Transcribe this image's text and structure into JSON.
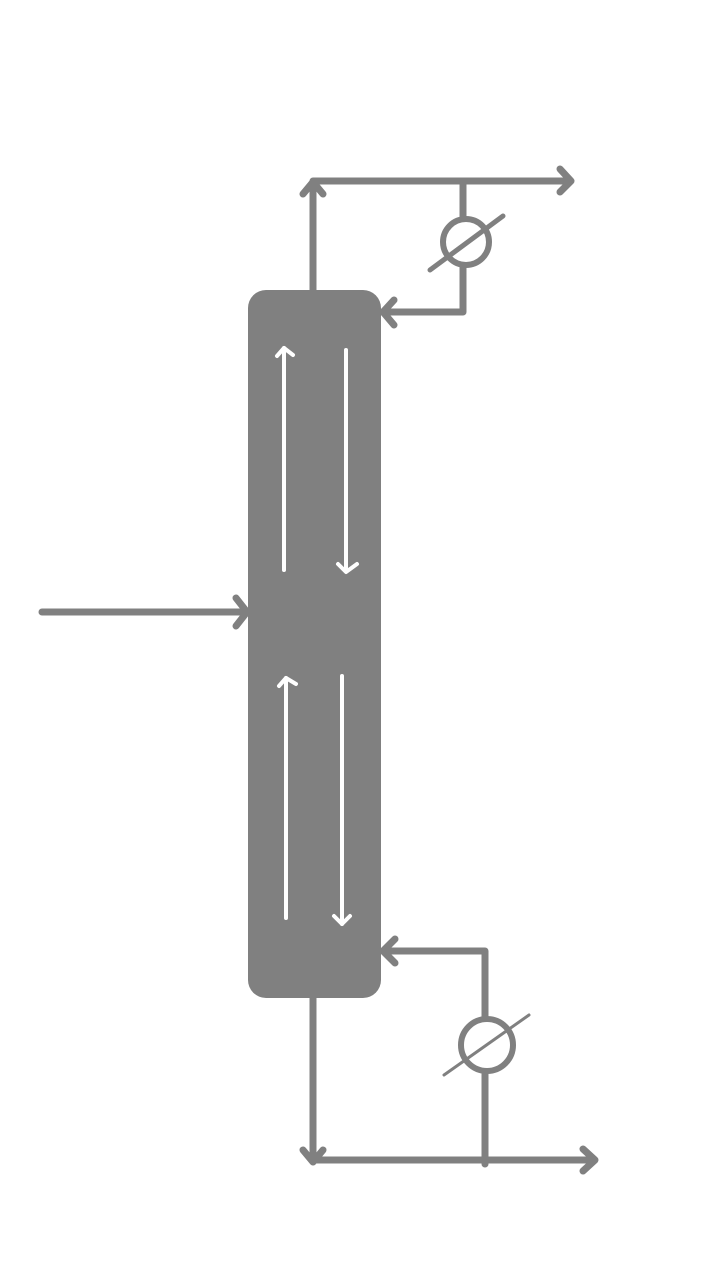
{
  "diagram": {
    "type": "distillation-column-schematic",
    "colors": {
      "background": "#ffffff",
      "equipment": "#808080",
      "internal_flow": "#ffffff"
    },
    "components": [
      {
        "name": "distillation-column",
        "shape": "rounded-rectangle",
        "fill": "equipment"
      },
      {
        "name": "condenser",
        "shape": "circle-with-diagonal",
        "position": "top-right"
      },
      {
        "name": "reboiler",
        "shape": "circle-with-diagonal",
        "position": "bottom-right"
      }
    ],
    "streams": [
      {
        "name": "feed-stream",
        "from": "left",
        "to": "distillation-column",
        "entry": "middle"
      },
      {
        "name": "overhead-vapor",
        "from": "distillation-column",
        "to": "condenser",
        "exit": "top"
      },
      {
        "name": "distillate-product",
        "from": "condenser",
        "to": "right"
      },
      {
        "name": "reflux-stream",
        "from": "condenser",
        "to": "distillation-column",
        "entry": "top-right"
      },
      {
        "name": "bottoms-stream",
        "from": "distillation-column",
        "to": "reboiler",
        "exit": "bottom"
      },
      {
        "name": "bottoms-product",
        "from": "reboiler",
        "to": "right"
      },
      {
        "name": "boilup-stream",
        "from": "reboiler",
        "to": "distillation-column",
        "entry": "bottom-right"
      }
    ],
    "internal_flows": [
      {
        "section": "rectifying",
        "direction": "up",
        "phase": "vapor"
      },
      {
        "section": "rectifying",
        "direction": "down",
        "phase": "liquid"
      },
      {
        "section": "stripping",
        "direction": "up",
        "phase": "vapor"
      },
      {
        "section": "stripping",
        "direction": "down",
        "phase": "liquid"
      }
    ]
  }
}
